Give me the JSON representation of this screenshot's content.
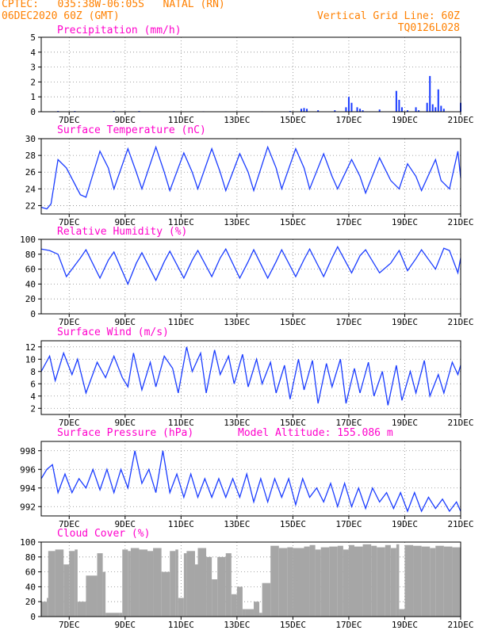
{
  "header": {
    "line1_left": "CPTEC:   035:38W-06:05S   NATAL (RN)",
    "line2_left": "06DEC2020 60Z (GMT)",
    "line1_right": "Vertical Grid Line: 60Z",
    "line2_right": "TQ0126L028"
  },
  "colors": {
    "title": "#ff00cc",
    "header": "#ff8000",
    "line": "#1a3cff",
    "cloud": "#a6a6a6",
    "grid": "#888888"
  },
  "x_ticks": [
    "7DEC",
    "9DEC",
    "11DEC",
    "13DEC",
    "15DEC",
    "17DEC",
    "19DEC",
    "21DEC"
  ],
  "chart_data": [
    {
      "type": "bar",
      "title": "Precipitation (mm/h)",
      "ylim": [
        0,
        5
      ],
      "yticks": [
        0,
        1,
        2,
        3,
        4,
        5
      ],
      "x": [
        6.6,
        7.2,
        8.6,
        9.5,
        11.8,
        12.6,
        13.9,
        14.9,
        15.3,
        15.4,
        15.5,
        15.9,
        16.5,
        16.9,
        17.0,
        17.1,
        17.3,
        17.4,
        17.5,
        18.1,
        18.7,
        18.8,
        18.9,
        19.1,
        19.4,
        19.5,
        19.8,
        19.9,
        20.0,
        20.1,
        20.2,
        20.3,
        20.4,
        21.0
      ],
      "values": [
        0.05,
        0.05,
        0.05,
        0.05,
        0.03,
        0.03,
        0.03,
        0.05,
        0.2,
        0.25,
        0.2,
        0.1,
        0.1,
        0.3,
        1.0,
        0.6,
        0.3,
        0.2,
        0.1,
        0.15,
        1.4,
        0.8,
        0.3,
        0.1,
        0.3,
        0.1,
        0.6,
        2.4,
        0.5,
        0.3,
        1.5,
        0.4,
        0.2,
        0.6
      ]
    },
    {
      "type": "line",
      "title": "Surface Temperature (nC)",
      "ylim": [
        21,
        30
      ],
      "yticks": [
        22,
        24,
        26,
        28,
        30
      ],
      "x": [
        6.0,
        6.2,
        6.35,
        6.6,
        6.9,
        7.4,
        7.6,
        8.1,
        8.4,
        8.6,
        9.1,
        9.4,
        9.6,
        10.1,
        10.4,
        10.6,
        11.1,
        11.4,
        11.6,
        12.1,
        12.4,
        12.6,
        13.1,
        13.4,
        13.6,
        14.1,
        14.4,
        14.6,
        15.1,
        15.4,
        15.6,
        16.1,
        16.4,
        16.6,
        17.1,
        17.4,
        17.6,
        18.1,
        18.5,
        18.8,
        19.1,
        19.4,
        19.6,
        20.1,
        20.3,
        20.6,
        20.9,
        21.0
      ],
      "y": [
        21.8,
        21.6,
        22.2,
        27.5,
        26.5,
        23.3,
        23.0,
        28.5,
        26.5,
        24.0,
        28.8,
        26.0,
        24.0,
        29.0,
        26.0,
        23.8,
        28.3,
        26.0,
        24.0,
        28.8,
        26.0,
        23.8,
        28.2,
        26.0,
        23.8,
        29.0,
        26.5,
        24.0,
        28.8,
        26.5,
        24.0,
        28.2,
        25.5,
        24.0,
        27.5,
        25.5,
        23.5,
        27.7,
        25.0,
        24.0,
        27.0,
        25.5,
        23.8,
        27.5,
        25.0,
        24.0,
        28.5,
        25.3
      ]
    },
    {
      "type": "line",
      "title": "Relative Humidity (%)",
      "ylim": [
        0,
        100
      ],
      "yticks": [
        0,
        20,
        40,
        60,
        80,
        100
      ],
      "x": [
        6.0,
        6.3,
        6.6,
        6.9,
        7.4,
        7.6,
        8.1,
        8.4,
        8.6,
        9.1,
        9.4,
        9.6,
        10.1,
        10.4,
        10.6,
        11.1,
        11.4,
        11.6,
        12.1,
        12.4,
        12.6,
        13.1,
        13.4,
        13.6,
        14.1,
        14.4,
        14.6,
        15.1,
        15.4,
        15.6,
        16.1,
        16.4,
        16.6,
        17.1,
        17.4,
        17.6,
        18.1,
        18.5,
        18.8,
        19.1,
        19.4,
        19.6,
        20.1,
        20.4,
        20.6,
        20.9,
        21.0
      ],
      "y": [
        87,
        85,
        80,
        50,
        75,
        86,
        48,
        72,
        83,
        40,
        68,
        82,
        45,
        70,
        84,
        48,
        72,
        85,
        50,
        75,
        87,
        48,
        70,
        86,
        48,
        70,
        86,
        50,
        73,
        87,
        50,
        75,
        90,
        55,
        78,
        86,
        55,
        68,
        85,
        58,
        74,
        86,
        60,
        88,
        85,
        55,
        75
      ]
    },
    {
      "type": "line",
      "title": "Surface Wind (m/s)",
      "ylim": [
        1,
        13
      ],
      "yticks": [
        2,
        4,
        6,
        8,
        10,
        12
      ],
      "x": [
        6.0,
        6.3,
        6.5,
        6.8,
        7.1,
        7.3,
        7.6,
        8.0,
        8.3,
        8.6,
        8.9,
        9.1,
        9.3,
        9.6,
        9.9,
        10.1,
        10.4,
        10.7,
        10.9,
        11.2,
        11.4,
        11.7,
        11.9,
        12.2,
        12.4,
        12.7,
        12.9,
        13.2,
        13.4,
        13.7,
        13.9,
        14.2,
        14.4,
        14.7,
        14.9,
        15.2,
        15.4,
        15.7,
        15.9,
        16.2,
        16.4,
        16.7,
        16.9,
        17.2,
        17.4,
        17.7,
        17.9,
        18.2,
        18.4,
        18.7,
        18.9,
        19.2,
        19.4,
        19.7,
        19.9,
        20.2,
        20.4,
        20.7,
        20.9,
        21.0
      ],
      "y": [
        8,
        10.5,
        6.5,
        11,
        7.5,
        10,
        4.5,
        9.5,
        7,
        10.5,
        7,
        5.5,
        11,
        5,
        9.5,
        5.5,
        10.5,
        8.5,
        4.5,
        12,
        8,
        11,
        4.5,
        11.5,
        7.5,
        10.5,
        6,
        10.8,
        5.5,
        10,
        6,
        9.5,
        4.5,
        9,
        3.5,
        10,
        5,
        9.8,
        2.8,
        9.3,
        5.5,
        10,
        2.8,
        8.5,
        4.5,
        9.5,
        4,
        8,
        2.5,
        9,
        3.3,
        8,
        4.5,
        9.8,
        4,
        7.5,
        4.5,
        9.5,
        7.5,
        9
      ]
    },
    {
      "type": "line",
      "title": "Surface Pressure (hPa)",
      "annotation": "Model Altitude: 155.086 m",
      "ylim": [
        991,
        999
      ],
      "yticks": [
        992,
        994,
        996,
        998
      ],
      "x": [
        6.0,
        6.2,
        6.4,
        6.6,
        6.85,
        7.1,
        7.35,
        7.6,
        7.85,
        8.1,
        8.35,
        8.6,
        8.85,
        9.1,
        9.35,
        9.6,
        9.85,
        10.1,
        10.35,
        10.6,
        10.85,
        11.1,
        11.35,
        11.6,
        11.85,
        12.1,
        12.35,
        12.6,
        12.85,
        13.1,
        13.35,
        13.6,
        13.85,
        14.1,
        14.35,
        14.6,
        14.85,
        15.1,
        15.35,
        15.6,
        15.85,
        16.1,
        16.35,
        16.6,
        16.85,
        17.1,
        17.35,
        17.6,
        17.85,
        18.1,
        18.35,
        18.6,
        18.85,
        19.1,
        19.35,
        19.6,
        19.85,
        20.1,
        20.35,
        20.6,
        20.85,
        21.0
      ],
      "y": [
        995,
        996,
        996.5,
        993.5,
        995.5,
        993.5,
        995,
        994,
        996,
        993.8,
        996,
        993.5,
        996,
        994,
        998,
        994.5,
        996,
        993.5,
        998,
        993.5,
        995.5,
        993,
        995.5,
        993,
        995,
        993,
        995,
        993,
        995,
        993,
        995.5,
        992.5,
        995,
        992.5,
        995,
        993,
        995,
        992.2,
        995,
        993,
        994,
        992.5,
        994.5,
        992,
        994.5,
        992,
        994,
        991.8,
        994,
        992.5,
        993.5,
        991.8,
        993.5,
        991.5,
        993.5,
        991.5,
        993,
        991.8,
        992.8,
        991.5,
        992.5,
        991.5
      ]
    },
    {
      "type": "area",
      "title": "Cloud Cover (%)",
      "ylim": [
        0,
        100
      ],
      "yticks": [
        0,
        20,
        40,
        60,
        80,
        100
      ],
      "x": [
        6.0,
        6.2,
        6.25,
        6.5,
        6.8,
        7.0,
        7.2,
        7.3,
        7.6,
        8.0,
        8.2,
        8.3,
        8.8,
        8.9,
        9.1,
        9.2,
        9.5,
        9.8,
        10.0,
        10.3,
        10.6,
        10.8,
        10.9,
        11.1,
        11.2,
        11.5,
        11.6,
        11.9,
        12.1,
        12.3,
        12.6,
        12.8,
        13.0,
        13.2,
        13.3,
        13.6,
        13.8,
        13.9,
        14.2,
        14.5,
        14.8,
        15.0,
        15.4,
        15.6,
        15.8,
        16.0,
        16.3,
        16.6,
        16.8,
        17.0,
        17.2,
        17.5,
        17.8,
        18.0,
        18.3,
        18.5,
        18.7,
        18.8,
        19.0,
        19.3,
        19.6,
        19.9,
        20.1,
        20.4,
        20.7,
        21.0
      ],
      "y": [
        20,
        25,
        88,
        90,
        70,
        88,
        90,
        20,
        55,
        85,
        60,
        5,
        5,
        90,
        88,
        92,
        90,
        88,
        92,
        60,
        88,
        90,
        25,
        85,
        88,
        70,
        92,
        80,
        50,
        80,
        85,
        30,
        40,
        10,
        10,
        20,
        5,
        45,
        95,
        92,
        93,
        92,
        94,
        96,
        90,
        93,
        94,
        95,
        90,
        96,
        94,
        97,
        95,
        93,
        96,
        92,
        97,
        10,
        96,
        95,
        94,
        92,
        95,
        94,
        93,
        92
      ]
    }
  ]
}
